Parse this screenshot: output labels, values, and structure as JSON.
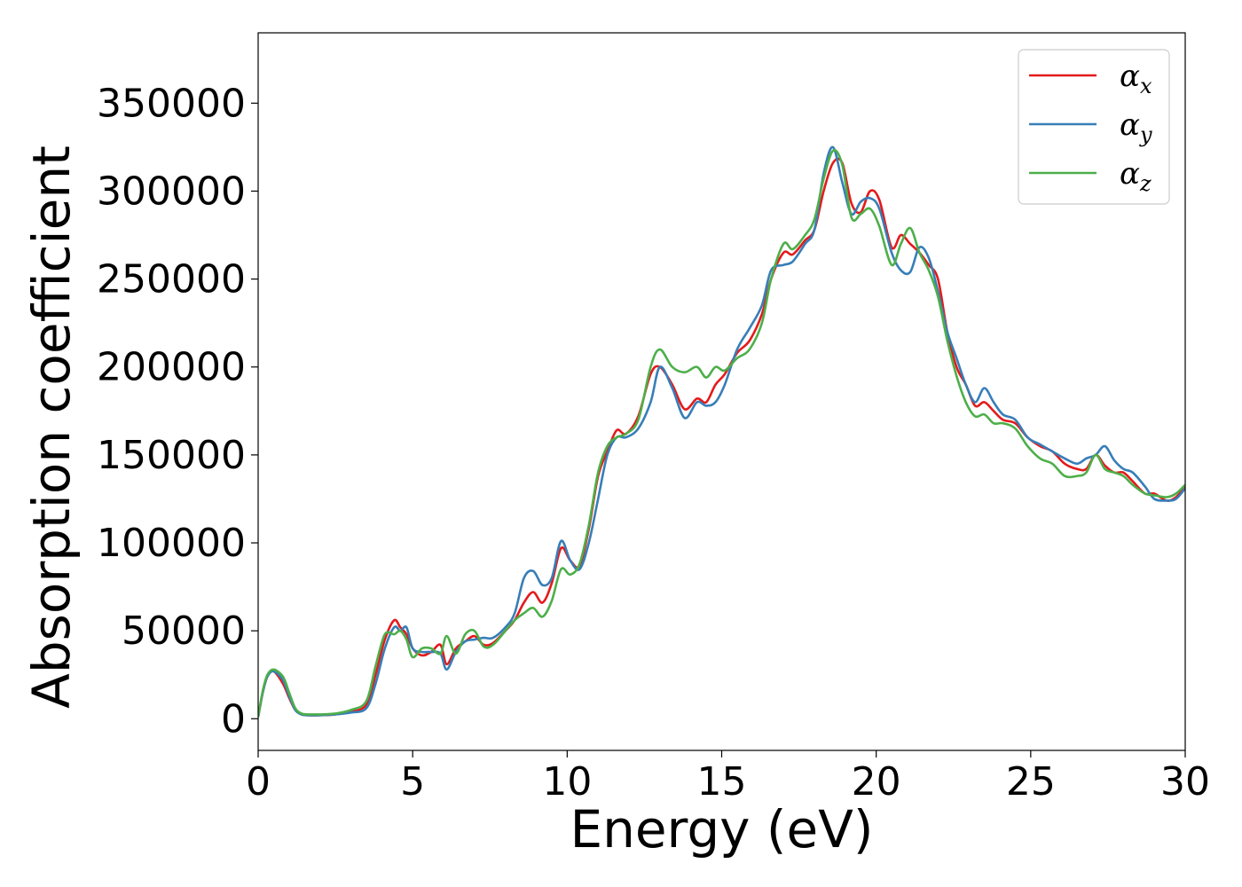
{
  "chart_data": {
    "type": "line",
    "xlabel": "Energy (eV)",
    "ylabel": "Absorption coefficient",
    "xlim": [
      0,
      30
    ],
    "ylim": [
      -18000,
      390000
    ],
    "xticks": [
      0,
      5,
      10,
      15,
      20,
      25,
      30
    ],
    "xtick_labels": [
      "0",
      "5",
      "10",
      "15",
      "20",
      "25",
      "30"
    ],
    "yticks": [
      0,
      50000,
      100000,
      150000,
      200000,
      250000,
      300000,
      350000
    ],
    "ytick_labels": [
      "0",
      "50000",
      "100000",
      "150000",
      "200000",
      "250000",
      "300000",
      "350000"
    ],
    "grid": false,
    "legend_position": "top-right",
    "series": [
      {
        "name": "x",
        "legend_symbol": "α",
        "color": "#e41a1c",
        "x": [
          0,
          0.15,
          0.3,
          0.5,
          0.8,
          1.0,
          1.2,
          1.4,
          1.6,
          2.0,
          2.5,
          3.0,
          3.5,
          3.8,
          4.1,
          4.4,
          4.6,
          4.8,
          5.0,
          5.3,
          5.6,
          5.9,
          6.1,
          6.4,
          6.7,
          7.0,
          7.3,
          7.6,
          8.0,
          8.3,
          8.6,
          8.9,
          9.2,
          9.5,
          9.8,
          10.1,
          10.4,
          10.7,
          11.0,
          11.3,
          11.6,
          11.9,
          12.3,
          12.7,
          13.0,
          13.4,
          13.8,
          14.2,
          14.5,
          14.8,
          15.1,
          15.5,
          15.9,
          16.3,
          16.6,
          17.0,
          17.3,
          17.7,
          18.0,
          18.3,
          18.6,
          18.9,
          19.2,
          19.5,
          19.8,
          20.1,
          20.5,
          20.8,
          21.1,
          21.4,
          21.7,
          22.0,
          22.3,
          22.6,
          22.9,
          23.2,
          23.5,
          23.8,
          24.1,
          24.5,
          24.9,
          25.3,
          25.7,
          26.1,
          26.5,
          26.8,
          27.1,
          27.4,
          27.7,
          28.0,
          28.3,
          28.7,
          29.0,
          29.4,
          29.7,
          30.0
        ],
        "y": [
          1000,
          15000,
          24000,
          27000,
          20000,
          12000,
          5000,
          2500,
          2000,
          2000,
          2500,
          4000,
          8000,
          25000,
          45000,
          56000,
          52000,
          48000,
          40000,
          36000,
          38000,
          42000,
          31000,
          40000,
          44000,
          47000,
          42000,
          43000,
          50000,
          56000,
          66000,
          72000,
          66000,
          77000,
          97000,
          90000,
          87000,
          108000,
          138000,
          152000,
          164000,
          162000,
          172000,
          196000,
          200000,
          190000,
          176000,
          182000,
          180000,
          190000,
          196000,
          208000,
          215000,
          230000,
          250000,
          265000,
          264000,
          272000,
          278000,
          300000,
          316000,
          316000,
          293000,
          288000,
          300000,
          295000,
          268000,
          275000,
          270000,
          265000,
          258000,
          250000,
          220000,
          200000,
          190000,
          178000,
          180000,
          175000,
          170000,
          168000,
          160000,
          155000,
          152000,
          145000,
          142000,
          142000,
          150000,
          144000,
          140000,
          140000,
          135000,
          128000,
          128000,
          124000,
          126000,
          132000
        ]
      },
      {
        "name": "y",
        "legend_symbol": "α",
        "color": "#377eb8",
        "x": [
          0,
          0.15,
          0.3,
          0.5,
          0.8,
          1.0,
          1.2,
          1.4,
          1.6,
          2.0,
          2.5,
          3.0,
          3.5,
          3.8,
          4.1,
          4.4,
          4.6,
          4.8,
          5.0,
          5.3,
          5.6,
          5.9,
          6.1,
          6.4,
          6.7,
          7.0,
          7.3,
          7.6,
          8.0,
          8.3,
          8.6,
          8.9,
          9.2,
          9.5,
          9.8,
          10.1,
          10.4,
          10.7,
          11.0,
          11.3,
          11.6,
          11.9,
          12.3,
          12.7,
          13.0,
          13.4,
          13.8,
          14.2,
          14.5,
          14.8,
          15.1,
          15.5,
          15.9,
          16.3,
          16.6,
          17.0,
          17.3,
          17.7,
          18.0,
          18.3,
          18.6,
          18.9,
          19.2,
          19.5,
          19.8,
          20.1,
          20.5,
          20.8,
          21.1,
          21.4,
          21.7,
          22.0,
          22.3,
          22.6,
          22.9,
          23.2,
          23.5,
          23.8,
          24.1,
          24.5,
          24.9,
          25.3,
          25.7,
          26.1,
          26.5,
          26.8,
          27.1,
          27.4,
          27.7,
          28.0,
          28.3,
          28.7,
          29.0,
          29.4,
          29.7,
          30.0
        ],
        "y": [
          1000,
          15000,
          24000,
          27000,
          22000,
          13000,
          5000,
          2500,
          2000,
          2000,
          2500,
          3500,
          6000,
          20000,
          40000,
          52000,
          50000,
          52000,
          40000,
          38000,
          38000,
          37000,
          28000,
          38000,
          44000,
          45000,
          46000,
          46000,
          52000,
          60000,
          80000,
          84000,
          76000,
          80000,
          101000,
          90000,
          85000,
          100000,
          125000,
          150000,
          160000,
          160000,
          165000,
          180000,
          200000,
          188000,
          171000,
          180000,
          178000,
          180000,
          190000,
          210000,
          222000,
          235000,
          255000,
          258000,
          260000,
          270000,
          278000,
          310000,
          325000,
          305000,
          287000,
          294000,
          296000,
          290000,
          265000,
          255000,
          254000,
          268000,
          262000,
          243000,
          220000,
          205000,
          190000,
          180000,
          188000,
          180000,
          173000,
          170000,
          160000,
          156000,
          152000,
          148000,
          145000,
          148000,
          150000,
          155000,
          147000,
          142000,
          140000,
          132000,
          125000,
          124000,
          125000,
          131000
        ]
      },
      {
        "name": "z",
        "legend_symbol": "α",
        "color": "#4daf4a",
        "x": [
          0,
          0.15,
          0.3,
          0.5,
          0.8,
          1.0,
          1.2,
          1.4,
          1.6,
          2.0,
          2.5,
          3.0,
          3.5,
          3.8,
          4.1,
          4.4,
          4.6,
          4.8,
          5.0,
          5.3,
          5.6,
          5.9,
          6.1,
          6.4,
          6.7,
          7.0,
          7.3,
          7.6,
          8.0,
          8.3,
          8.6,
          8.9,
          9.2,
          9.5,
          9.8,
          10.1,
          10.4,
          10.7,
          11.0,
          11.3,
          11.6,
          11.9,
          12.3,
          12.7,
          13.0,
          13.4,
          13.8,
          14.2,
          14.5,
          14.8,
          15.1,
          15.5,
          15.9,
          16.3,
          16.6,
          17.0,
          17.3,
          17.7,
          18.0,
          18.3,
          18.6,
          18.9,
          19.2,
          19.5,
          19.8,
          20.1,
          20.5,
          20.8,
          21.1,
          21.4,
          21.7,
          22.0,
          22.3,
          22.6,
          22.9,
          23.2,
          23.5,
          23.8,
          24.1,
          24.5,
          24.9,
          25.3,
          25.7,
          26.1,
          26.5,
          26.8,
          27.1,
          27.4,
          27.7,
          28.0,
          28.3,
          28.7,
          29.0,
          29.4,
          29.7,
          30.0
        ],
        "y": [
          1000,
          16000,
          25000,
          28000,
          24000,
          15000,
          6000,
          3000,
          2500,
          2500,
          3000,
          5000,
          10000,
          30000,
          48000,
          48000,
          50000,
          45000,
          35000,
          40000,
          40000,
          37000,
          47000,
          37000,
          48000,
          50000,
          41000,
          42000,
          50000,
          56000,
          60000,
          63000,
          58000,
          67000,
          85000,
          82000,
          88000,
          110000,
          140000,
          155000,
          160000,
          162000,
          170000,
          200000,
          210000,
          200000,
          197000,
          200000,
          194000,
          200000,
          198000,
          205000,
          210000,
          225000,
          250000,
          270000,
          267000,
          275000,
          284000,
          307000,
          323000,
          315000,
          285000,
          287000,
          290000,
          280000,
          258000,
          270000,
          279000,
          265000,
          255000,
          240000,
          215000,
          195000,
          180000,
          172000,
          173000,
          168000,
          168000,
          165000,
          155000,
          148000,
          145000,
          138000,
          138000,
          140000,
          150000,
          142000,
          140000,
          138000,
          133000,
          128000,
          127000,
          126000,
          128000,
          133000
        ]
      }
    ]
  }
}
